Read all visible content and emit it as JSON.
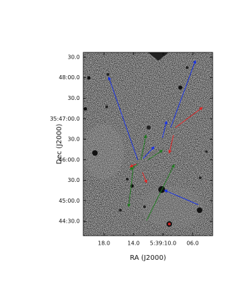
{
  "chart_data": {
    "type": "image",
    "xlabel": "RA (J2000)",
    "ylabel": "Dec (J2000)",
    "xlim": [
      20.8,
      3.3
    ],
    "xticks": [
      {
        "value": 18,
        "label": "18.0"
      },
      {
        "value": 14,
        "label": "14.0"
      },
      {
        "value": 10,
        "label": "5:39:10.0"
      },
      {
        "value": 6,
        "label": "06.0"
      }
    ],
    "ylim": [
      2649,
      2917
    ],
    "yticks": [
      {
        "value": 2910,
        "label": "30.0"
      },
      {
        "value": 2880,
        "label": "48:00.0"
      },
      {
        "value": 2850,
        "label": "30.0"
      },
      {
        "value": 2820,
        "label": "35:47:00.0"
      },
      {
        "value": 2790,
        "label": "30.0"
      },
      {
        "value": 2760,
        "label": "46:00.0"
      },
      {
        "value": 2730,
        "label": "30.0"
      },
      {
        "value": 2700,
        "label": "45:00.0"
      },
      {
        "value": 2670,
        "label": "44:30.0"
      }
    ]
  }
}
